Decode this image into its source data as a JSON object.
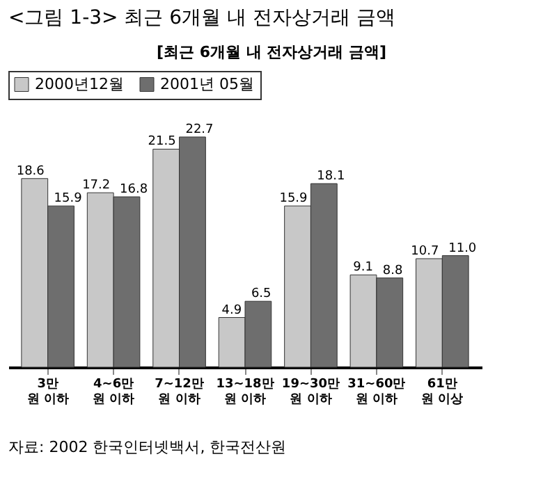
{
  "chart_data": {
    "type": "bar",
    "title": "<그림 1-3> 최근 6개월 내 전자상거래 금액",
    "subtitle": "[최근 6개월 내 전자상거래 금액]",
    "categories": [
      "3만 원 이하",
      "4~6만 원 이하",
      "7~12만 원 이하",
      "13~18만 원 이하",
      "19~30만 원 이하",
      "31~60만 원 이하",
      "61만 원 이상"
    ],
    "series": [
      {
        "name": "2000년12월",
        "color": "#c8c8c8",
        "values": [
          18.6,
          17.2,
          21.5,
          4.9,
          15.9,
          9.1,
          10.7
        ],
        "value_labels": [
          "18.6",
          "17.2",
          "21.5",
          "4.9",
          "15.9",
          "9.1",
          "10.7"
        ]
      },
      {
        "name": "2001년 05월",
        "color": "#6e6e6e",
        "values": [
          15.9,
          16.8,
          22.7,
          6.5,
          18.1,
          8.8,
          11.0
        ],
        "value_labels": [
          "15.9",
          "16.8",
          "22.7",
          "6.5",
          "18.1",
          "8.8",
          "11.0"
        ]
      }
    ],
    "legend": "top left",
    "annotations": [
      "자료: 2002 한국인터넷백서, 한국전산원"
    ]
  }
}
